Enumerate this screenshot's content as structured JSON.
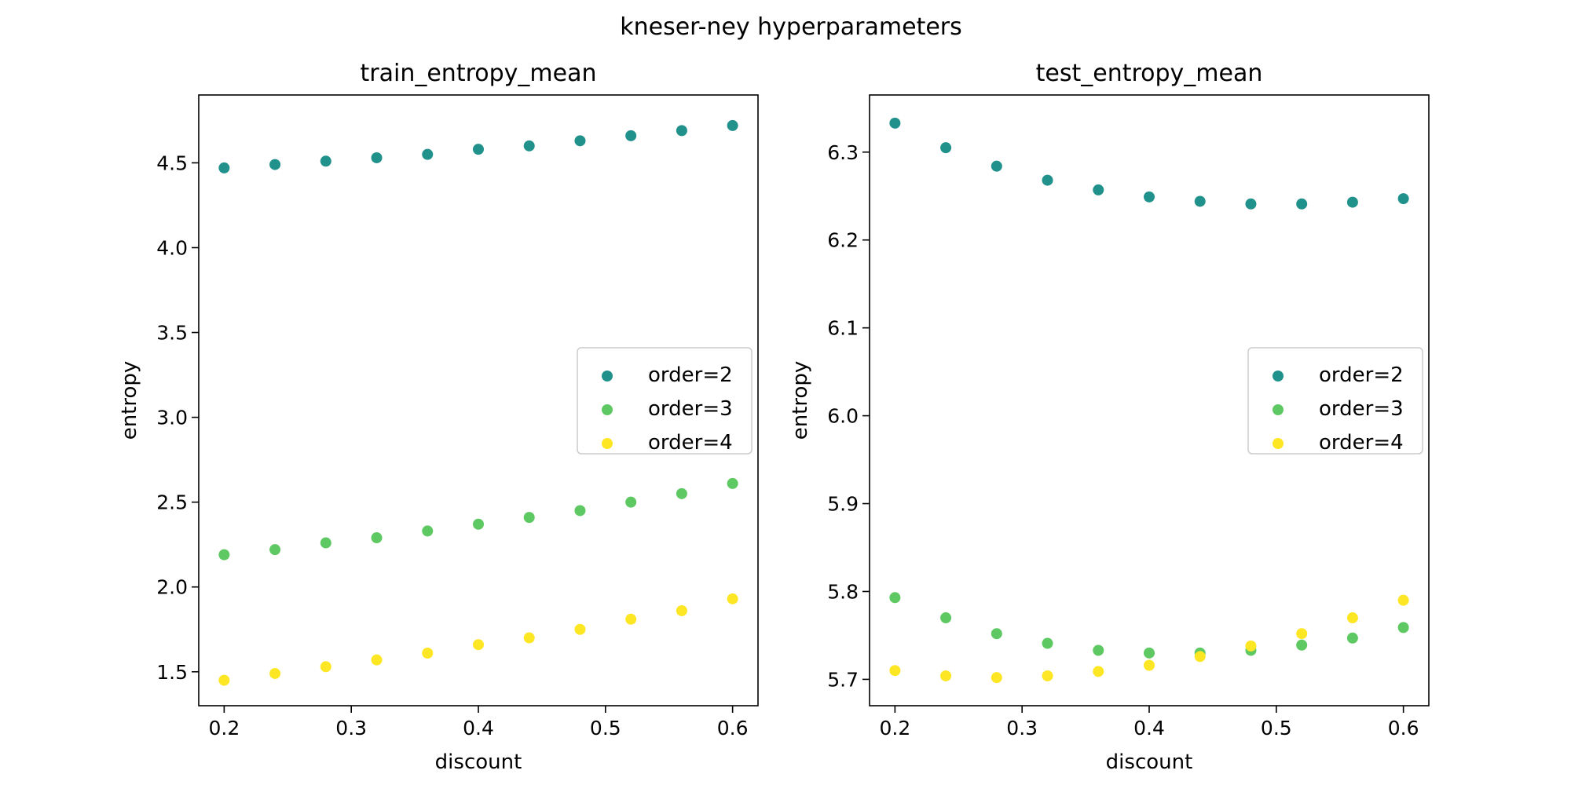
{
  "figure_title": "kneser-ney hyperparameters",
  "chart_data": [
    {
      "type": "scatter",
      "title": "train_entropy_mean",
      "xlabel": "discount",
      "ylabel": "entropy",
      "xlim": [
        0.18,
        0.62
      ],
      "ylim": [
        1.3,
        4.9
      ],
      "xticks": [
        0.2,
        0.3,
        0.4,
        0.5,
        0.6
      ],
      "xtick_labels": [
        "0.2",
        "0.3",
        "0.4",
        "0.5",
        "0.6"
      ],
      "yticks": [
        1.5,
        2.0,
        2.5,
        3.0,
        3.5,
        4.0,
        4.5
      ],
      "ytick_labels": [
        "1.5",
        "2.0",
        "2.5",
        "3.0",
        "3.5",
        "4.0",
        "4.5"
      ],
      "legend_position": "center-right",
      "x": [
        0.2,
        0.24,
        0.28,
        0.32,
        0.36,
        0.4,
        0.44,
        0.48,
        0.52,
        0.56,
        0.6
      ],
      "series": [
        {
          "name": "order=2",
          "color": "#21918c",
          "values": [
            4.47,
            4.49,
            4.51,
            4.53,
            4.55,
            4.58,
            4.6,
            4.63,
            4.66,
            4.69,
            4.72
          ]
        },
        {
          "name": "order=3",
          "color": "#5ec962",
          "values": [
            2.19,
            2.22,
            2.26,
            2.29,
            2.33,
            2.37,
            2.41,
            2.45,
            2.5,
            2.55,
            2.61
          ]
        },
        {
          "name": "order=4",
          "color": "#fde725",
          "values": [
            1.45,
            1.49,
            1.53,
            1.57,
            1.61,
            1.66,
            1.7,
            1.75,
            1.81,
            1.86,
            1.93
          ]
        }
      ]
    },
    {
      "type": "scatter",
      "title": "test_entropy_mean",
      "xlabel": "discount",
      "ylabel": "entropy",
      "xlim": [
        0.18,
        0.62
      ],
      "ylim": [
        5.67,
        6.365
      ],
      "xticks": [
        0.2,
        0.3,
        0.4,
        0.5,
        0.6
      ],
      "xtick_labels": [
        "0.2",
        "0.3",
        "0.4",
        "0.5",
        "0.6"
      ],
      "yticks": [
        5.7,
        5.8,
        5.9,
        6.0,
        6.1,
        6.2,
        6.3
      ],
      "ytick_labels": [
        "5.7",
        "5.8",
        "5.9",
        "6.0",
        "6.1",
        "6.2",
        "6.3"
      ],
      "legend_position": "center-right",
      "x": [
        0.2,
        0.24,
        0.28,
        0.32,
        0.36,
        0.4,
        0.44,
        0.48,
        0.52,
        0.56,
        0.6
      ],
      "series": [
        {
          "name": "order=2",
          "color": "#21918c",
          "values": [
            6.333,
            6.305,
            6.284,
            6.268,
            6.257,
            6.249,
            6.244,
            6.241,
            6.241,
            6.243,
            6.247
          ]
        },
        {
          "name": "order=3",
          "color": "#5ec962",
          "values": [
            5.793,
            5.77,
            5.752,
            5.741,
            5.733,
            5.73,
            5.73,
            5.733,
            5.739,
            5.747,
            5.759
          ]
        },
        {
          "name": "order=4",
          "color": "#fde725",
          "values": [
            5.71,
            5.704,
            5.702,
            5.704,
            5.709,
            5.716,
            5.726,
            5.738,
            5.752,
            5.77,
            5.79
          ]
        }
      ]
    }
  ]
}
